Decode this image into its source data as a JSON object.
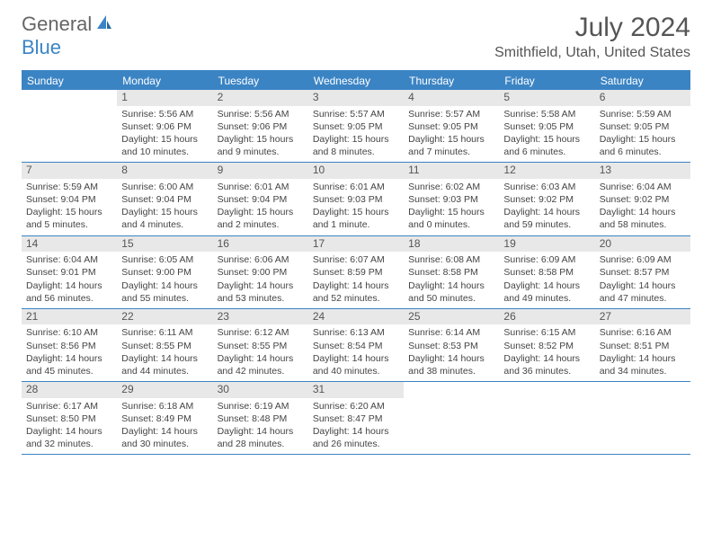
{
  "logo": {
    "text1": "General",
    "text2": "Blue"
  },
  "header": {
    "month_title": "July 2024",
    "location": "Smithfield, Utah, United States"
  },
  "colors": {
    "accent": "#3b84c4",
    "daynum_bg": "#e8e8e8",
    "text": "#444"
  },
  "weekdays": [
    "Sunday",
    "Monday",
    "Tuesday",
    "Wednesday",
    "Thursday",
    "Friday",
    "Saturday"
  ],
  "weeks": [
    [
      {
        "n": "",
        "sr": "",
        "ss": "",
        "dl": ""
      },
      {
        "n": "1",
        "sr": "Sunrise: 5:56 AM",
        "ss": "Sunset: 9:06 PM",
        "dl": "Daylight: 15 hours and 10 minutes."
      },
      {
        "n": "2",
        "sr": "Sunrise: 5:56 AM",
        "ss": "Sunset: 9:06 PM",
        "dl": "Daylight: 15 hours and 9 minutes."
      },
      {
        "n": "3",
        "sr": "Sunrise: 5:57 AM",
        "ss": "Sunset: 9:05 PM",
        "dl": "Daylight: 15 hours and 8 minutes."
      },
      {
        "n": "4",
        "sr": "Sunrise: 5:57 AM",
        "ss": "Sunset: 9:05 PM",
        "dl": "Daylight: 15 hours and 7 minutes."
      },
      {
        "n": "5",
        "sr": "Sunrise: 5:58 AM",
        "ss": "Sunset: 9:05 PM",
        "dl": "Daylight: 15 hours and 6 minutes."
      },
      {
        "n": "6",
        "sr": "Sunrise: 5:59 AM",
        "ss": "Sunset: 9:05 PM",
        "dl": "Daylight: 15 hours and 6 minutes."
      }
    ],
    [
      {
        "n": "7",
        "sr": "Sunrise: 5:59 AM",
        "ss": "Sunset: 9:04 PM",
        "dl": "Daylight: 15 hours and 5 minutes."
      },
      {
        "n": "8",
        "sr": "Sunrise: 6:00 AM",
        "ss": "Sunset: 9:04 PM",
        "dl": "Daylight: 15 hours and 4 minutes."
      },
      {
        "n": "9",
        "sr": "Sunrise: 6:01 AM",
        "ss": "Sunset: 9:04 PM",
        "dl": "Daylight: 15 hours and 2 minutes."
      },
      {
        "n": "10",
        "sr": "Sunrise: 6:01 AM",
        "ss": "Sunset: 9:03 PM",
        "dl": "Daylight: 15 hours and 1 minute."
      },
      {
        "n": "11",
        "sr": "Sunrise: 6:02 AM",
        "ss": "Sunset: 9:03 PM",
        "dl": "Daylight: 15 hours and 0 minutes."
      },
      {
        "n": "12",
        "sr": "Sunrise: 6:03 AM",
        "ss": "Sunset: 9:02 PM",
        "dl": "Daylight: 14 hours and 59 minutes."
      },
      {
        "n": "13",
        "sr": "Sunrise: 6:04 AM",
        "ss": "Sunset: 9:02 PM",
        "dl": "Daylight: 14 hours and 58 minutes."
      }
    ],
    [
      {
        "n": "14",
        "sr": "Sunrise: 6:04 AM",
        "ss": "Sunset: 9:01 PM",
        "dl": "Daylight: 14 hours and 56 minutes."
      },
      {
        "n": "15",
        "sr": "Sunrise: 6:05 AM",
        "ss": "Sunset: 9:00 PM",
        "dl": "Daylight: 14 hours and 55 minutes."
      },
      {
        "n": "16",
        "sr": "Sunrise: 6:06 AM",
        "ss": "Sunset: 9:00 PM",
        "dl": "Daylight: 14 hours and 53 minutes."
      },
      {
        "n": "17",
        "sr": "Sunrise: 6:07 AM",
        "ss": "Sunset: 8:59 PM",
        "dl": "Daylight: 14 hours and 52 minutes."
      },
      {
        "n": "18",
        "sr": "Sunrise: 6:08 AM",
        "ss": "Sunset: 8:58 PM",
        "dl": "Daylight: 14 hours and 50 minutes."
      },
      {
        "n": "19",
        "sr": "Sunrise: 6:09 AM",
        "ss": "Sunset: 8:58 PM",
        "dl": "Daylight: 14 hours and 49 minutes."
      },
      {
        "n": "20",
        "sr": "Sunrise: 6:09 AM",
        "ss": "Sunset: 8:57 PM",
        "dl": "Daylight: 14 hours and 47 minutes."
      }
    ],
    [
      {
        "n": "21",
        "sr": "Sunrise: 6:10 AM",
        "ss": "Sunset: 8:56 PM",
        "dl": "Daylight: 14 hours and 45 minutes."
      },
      {
        "n": "22",
        "sr": "Sunrise: 6:11 AM",
        "ss": "Sunset: 8:55 PM",
        "dl": "Daylight: 14 hours and 44 minutes."
      },
      {
        "n": "23",
        "sr": "Sunrise: 6:12 AM",
        "ss": "Sunset: 8:55 PM",
        "dl": "Daylight: 14 hours and 42 minutes."
      },
      {
        "n": "24",
        "sr": "Sunrise: 6:13 AM",
        "ss": "Sunset: 8:54 PM",
        "dl": "Daylight: 14 hours and 40 minutes."
      },
      {
        "n": "25",
        "sr": "Sunrise: 6:14 AM",
        "ss": "Sunset: 8:53 PM",
        "dl": "Daylight: 14 hours and 38 minutes."
      },
      {
        "n": "26",
        "sr": "Sunrise: 6:15 AM",
        "ss": "Sunset: 8:52 PM",
        "dl": "Daylight: 14 hours and 36 minutes."
      },
      {
        "n": "27",
        "sr": "Sunrise: 6:16 AM",
        "ss": "Sunset: 8:51 PM",
        "dl": "Daylight: 14 hours and 34 minutes."
      }
    ],
    [
      {
        "n": "28",
        "sr": "Sunrise: 6:17 AM",
        "ss": "Sunset: 8:50 PM",
        "dl": "Daylight: 14 hours and 32 minutes."
      },
      {
        "n": "29",
        "sr": "Sunrise: 6:18 AM",
        "ss": "Sunset: 8:49 PM",
        "dl": "Daylight: 14 hours and 30 minutes."
      },
      {
        "n": "30",
        "sr": "Sunrise: 6:19 AM",
        "ss": "Sunset: 8:48 PM",
        "dl": "Daylight: 14 hours and 28 minutes."
      },
      {
        "n": "31",
        "sr": "Sunrise: 6:20 AM",
        "ss": "Sunset: 8:47 PM",
        "dl": "Daylight: 14 hours and 26 minutes."
      },
      {
        "n": "",
        "sr": "",
        "ss": "",
        "dl": ""
      },
      {
        "n": "",
        "sr": "",
        "ss": "",
        "dl": ""
      },
      {
        "n": "",
        "sr": "",
        "ss": "",
        "dl": ""
      }
    ]
  ]
}
